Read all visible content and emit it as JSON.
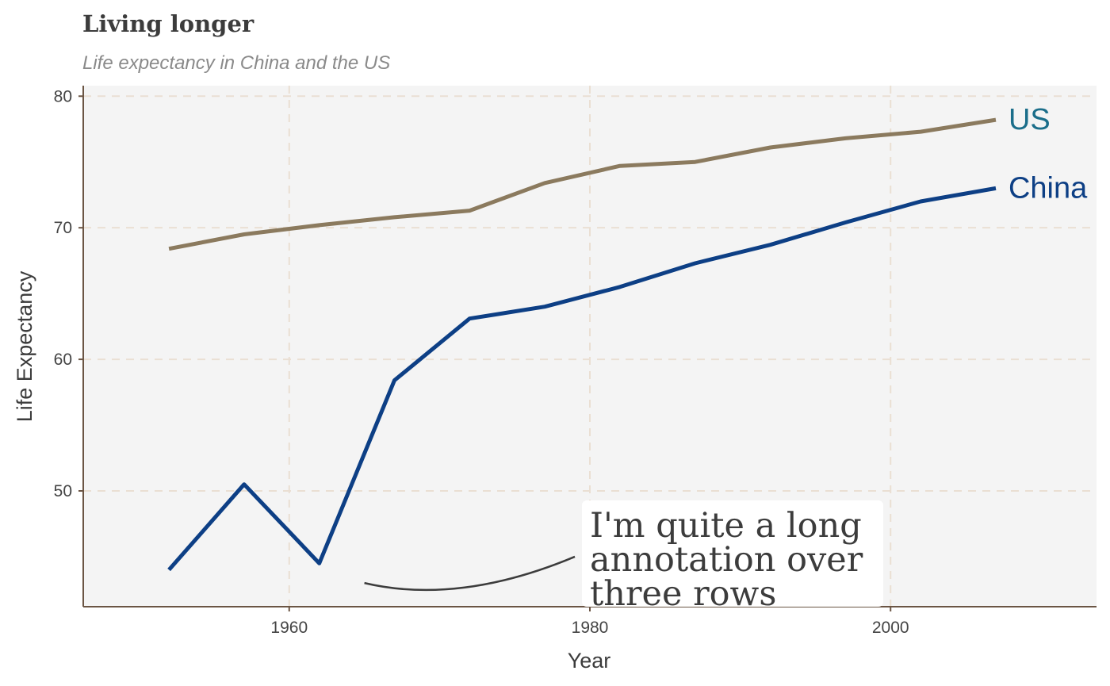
{
  "chart_data": {
    "type": "line",
    "title": "Living longer",
    "subtitle": "Life expectancy in China and the US",
    "xlabel": "Year",
    "ylabel": "Life Expectancy",
    "xlim": [
      1946.3,
      2013.7
    ],
    "ylim": [
      41.2,
      80.8
    ],
    "xticks": [
      1960,
      1980,
      2000
    ],
    "yticks": [
      50,
      60,
      70,
      80
    ],
    "grid": true,
    "legend": "direct labels at line ends",
    "x": [
      1952,
      1957,
      1962,
      1967,
      1972,
      1977,
      1982,
      1987,
      1992,
      1997,
      2002,
      2007
    ],
    "series": [
      {
        "name": "US",
        "color": "#8b7a5e",
        "label_color": "#1b6e8a",
        "values": [
          68.4,
          69.5,
          70.2,
          70.8,
          71.3,
          73.4,
          74.7,
          75.0,
          76.1,
          76.8,
          77.3,
          78.2
        ]
      },
      {
        "name": "China",
        "color": "#0d3f85",
        "label_color": "#0d3f85",
        "values": [
          44.0,
          50.5,
          44.5,
          58.4,
          63.1,
          64.0,
          65.5,
          67.3,
          68.7,
          70.4,
          72.0,
          73.0
        ]
      }
    ],
    "annotation": {
      "lines": [
        "I'm quite a long",
        "annotation over",
        "three rows"
      ],
      "arrow_from": [
        1965,
        43.0
      ],
      "arrow_to": [
        1979,
        45.0
      ]
    }
  },
  "colors": {
    "panel_background": "#f4f4f4",
    "grid": "#eadfd3",
    "axis": "#6b5544"
  }
}
